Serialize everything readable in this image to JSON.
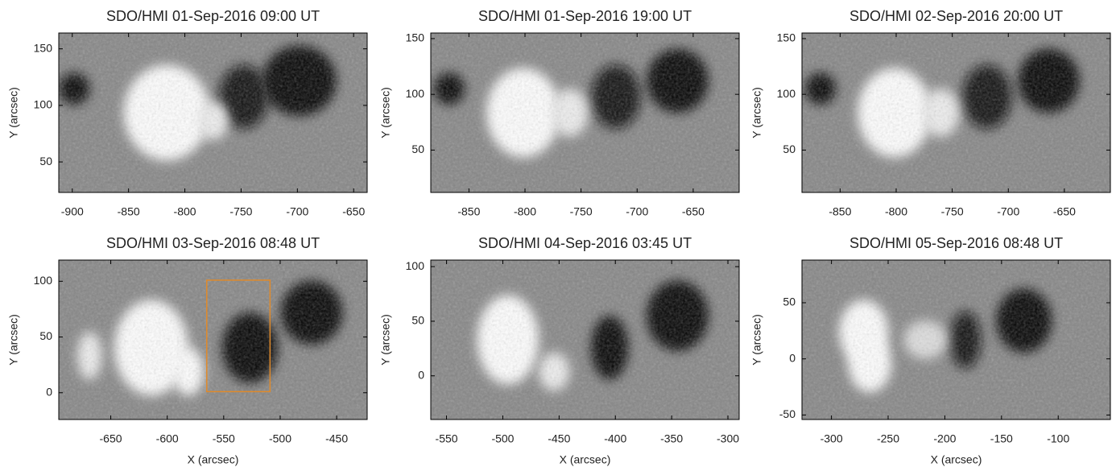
{
  "chart_data": [
    {
      "type": "image",
      "title": "SDO/HMI 01-Sep-2016 09:00 UT",
      "ylabel": "Y (arcsec)",
      "xlim": [
        -912,
        -638
      ],
      "ylim": [
        23,
        164
      ],
      "xticks": [
        -900,
        -850,
        -800,
        -750,
        -700,
        -650
      ],
      "yticks": [
        50,
        100,
        150
      ]
    },
    {
      "type": "image",
      "title": "SDO/HMI 01-Sep-2016 19:00 UT",
      "ylabel": "Y (arcsec)",
      "xlim": [
        -884,
        -609
      ],
      "ylim": [
        12,
        155
      ],
      "xticks": [
        -850,
        -800,
        -750,
        -700,
        -650
      ],
      "yticks": [
        50,
        100,
        150
      ]
    },
    {
      "type": "image",
      "title": "SDO/HMI 02-Sep-2016 20:00 UT",
      "ylabel": "Y (arcsec)",
      "xlim": [
        -884,
        -609
      ],
      "ylim": [
        12,
        155
      ],
      "xticks": [
        -850,
        -800,
        -750,
        -700,
        -650
      ],
      "yticks": [
        50,
        100,
        150
      ]
    },
    {
      "type": "image",
      "title": "SDO/HMI 03-Sep-2016 08:48 UT",
      "xlabel": "X (arcsec)",
      "ylabel": "Y (arcsec)",
      "xlim": [
        -696,
        -423
      ],
      "ylim": [
        -24,
        119
      ],
      "xticks": [
        -650,
        -600,
        -550,
        -500,
        -450
      ],
      "yticks": [
        0,
        50,
        100
      ],
      "box": {
        "x": [
          -565,
          -509
        ],
        "y": [
          1,
          101
        ],
        "color": "#e08a2a"
      }
    },
    {
      "type": "image",
      "title": "SDO/HMI 04-Sep-2016 03:45 UT",
      "xlabel": "X (arcsec)",
      "ylabel": "Y (arcsec)",
      "xlim": [
        -564,
        -290
      ],
      "ylim": [
        -40,
        106
      ],
      "xticks": [
        -550,
        -500,
        -450,
        -400,
        -350,
        -300
      ],
      "yticks": [
        0,
        50,
        100
      ]
    },
    {
      "type": "image",
      "title": "SDO/HMI 05-Sep-2016 08:48 UT",
      "xlabel": "X (arcsec)",
      "ylabel": "Y (arcsec)",
      "xlim": [
        -326,
        -54
      ],
      "ylim": [
        -54,
        88
      ],
      "xticks": [
        -300,
        -250,
        -200,
        -150,
        -100
      ],
      "yticks": [
        -50,
        0,
        50
      ]
    }
  ]
}
